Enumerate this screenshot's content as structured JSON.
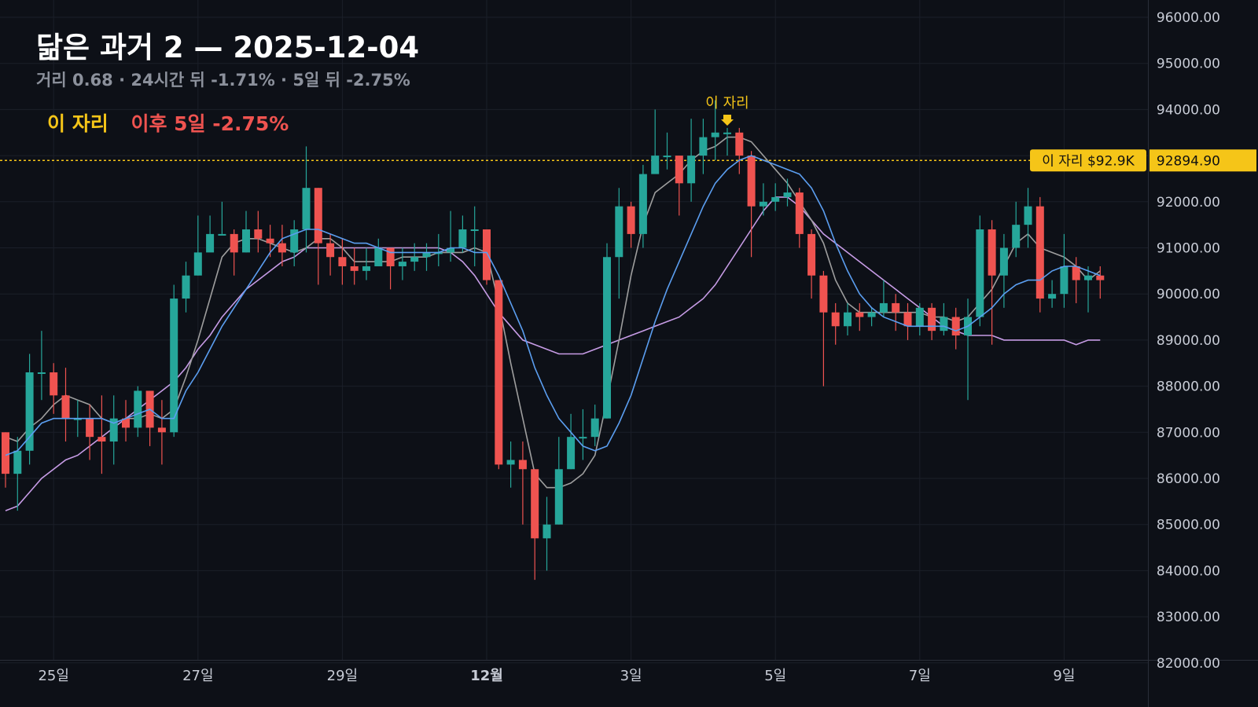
{
  "header": {
    "title": "닮은 과거 2 — 2025-12-04",
    "subtitle": "거리 0.68 · 24시간 뒤 -1.71% · 5일 뒤 -2.75%",
    "marker_label": "이 자리",
    "outcome_label": "이후 5일 -2.75%"
  },
  "colors": {
    "background": "#0d1017",
    "up": "#26a69a",
    "down": "#ef5350",
    "marker": "#f5c518",
    "ma_gray": "#9e9e9e",
    "ma_blue": "#5b9ef0",
    "ma_purple": "#c79ce6",
    "outcome": "#ef5350"
  },
  "chart_data": {
    "type": "candlestick",
    "ylim": [
      82000,
      96000
    ],
    "y_ticks": [
      "82000.00",
      "83000.00",
      "84000.00",
      "85000.00",
      "86000.00",
      "87000.00",
      "88000.00",
      "89000.00",
      "90000.00",
      "91000.00",
      "92000.00",
      "93000.00",
      "94000.00",
      "95000.00",
      "96000.00"
    ],
    "x_ticks": [
      {
        "label": "25일",
        "index": 4
      },
      {
        "label": "27일",
        "index": 16
      },
      {
        "label": "29일",
        "index": 28
      },
      {
        "label": "12월",
        "index": 40,
        "bold": true
      },
      {
        "label": "3일",
        "index": 52
      },
      {
        "label": "5일",
        "index": 64
      },
      {
        "label": "7일",
        "index": 76
      },
      {
        "label": "9일",
        "index": 88
      }
    ],
    "candles": [
      [
        87000,
        86100,
        87000,
        85800
      ],
      [
        86100,
        86600,
        86900,
        85300
      ],
      [
        86600,
        88300,
        88700,
        86300
      ],
      [
        88300,
        88300,
        89200,
        87700
      ],
      [
        88300,
        87800,
        88500,
        87400
      ],
      [
        87800,
        87300,
        88400,
        86800
      ],
      [
        87300,
        87300,
        87700,
        86900
      ],
      [
        87300,
        86900,
        87600,
        86400
      ],
      [
        86900,
        86800,
        87800,
        86100
      ],
      [
        86800,
        87300,
        87800,
        86300
      ],
      [
        87300,
        87100,
        87700,
        86800
      ],
      [
        87100,
        87900,
        88000,
        86900
      ],
      [
        87900,
        87100,
        87900,
        86700
      ],
      [
        87100,
        87000,
        87700,
        86300
      ],
      [
        87000,
        89900,
        90200,
        86900
      ],
      [
        89900,
        90400,
        90700,
        89600
      ],
      [
        90400,
        90900,
        91700,
        90400
      ],
      [
        90900,
        91300,
        91700,
        91000
      ],
      [
        91300,
        91300,
        92000,
        91300
      ],
      [
        91300,
        90900,
        91400,
        90400
      ],
      [
        90900,
        91400,
        91800,
        90900
      ],
      [
        91400,
        91200,
        91800,
        90900
      ],
      [
        91200,
        91100,
        91500,
        90800
      ],
      [
        91100,
        90900,
        91500,
        90600
      ],
      [
        90900,
        91400,
        91600,
        90600
      ],
      [
        91400,
        92300,
        93200,
        90900
      ],
      [
        92300,
        91100,
        92300,
        90200
      ],
      [
        91100,
        90800,
        91300,
        90400
      ],
      [
        90800,
        90600,
        91200,
        90200
      ],
      [
        90600,
        90500,
        91000,
        90200
      ],
      [
        90500,
        90600,
        91000,
        90300
      ],
      [
        90600,
        91000,
        91200,
        90600
      ],
      [
        91000,
        90600,
        91000,
        90100
      ],
      [
        90600,
        90700,
        91000,
        90300
      ],
      [
        90700,
        90800,
        91100,
        90500
      ],
      [
        90800,
        90900,
        91100,
        90500
      ],
      [
        90900,
        90900,
        91300,
        90600
      ],
      [
        90900,
        91000,
        91800,
        90700
      ],
      [
        91000,
        91400,
        91700,
        90900
      ],
      [
        91400,
        91400,
        91900,
        90600
      ],
      [
        91400,
        90300,
        91400,
        90200
      ],
      [
        90300,
        86300,
        90300,
        86200
      ],
      [
        86300,
        86400,
        86800,
        85800
      ],
      [
        86400,
        86200,
        86800,
        85000
      ],
      [
        86200,
        84700,
        86200,
        83800
      ],
      [
        84700,
        85000,
        85600,
        84000
      ],
      [
        85000,
        86200,
        86900,
        85000
      ],
      [
        86200,
        86900,
        87400,
        86200
      ],
      [
        86900,
        86900,
        87500,
        86400
      ],
      [
        86900,
        87300,
        87600,
        86700
      ],
      [
        87300,
        90800,
        91100,
        87300
      ],
      [
        90800,
        91900,
        92300,
        89900
      ],
      [
        91900,
        91300,
        92000,
        91000
      ],
      [
        91300,
        92600,
        92800,
        91000
      ],
      [
        92600,
        93000,
        94000,
        92800
      ],
      [
        93000,
        93000,
        93500,
        92700
      ],
      [
        93000,
        92400,
        93000,
        91700
      ],
      [
        92400,
        93000,
        93800,
        92000
      ],
      [
        93000,
        93400,
        93800,
        92600
      ],
      [
        93400,
        93500,
        94200,
        92900
      ],
      [
        93500,
        93500,
        93600,
        93000
      ],
      [
        93500,
        93000,
        93600,
        92600
      ],
      [
        93000,
        91900,
        93100,
        90800
      ],
      [
        91900,
        92000,
        92400,
        91700
      ],
      [
        92000,
        92100,
        92400,
        91800
      ],
      [
        92100,
        92200,
        92500,
        91900
      ],
      [
        92200,
        91300,
        92300,
        91000
      ],
      [
        91300,
        90400,
        91400,
        89900
      ],
      [
        90400,
        89600,
        90500,
        88000
      ],
      [
        89600,
        89300,
        89800,
        88900
      ],
      [
        89300,
        89600,
        89800,
        89100
      ],
      [
        89600,
        89500,
        89800,
        89200
      ],
      [
        89500,
        89600,
        89700,
        89300
      ],
      [
        89600,
        89800,
        90300,
        89500
      ],
      [
        89800,
        89600,
        90000,
        89200
      ],
      [
        89600,
        89300,
        89800,
        89000
      ],
      [
        89300,
        89700,
        89800,
        89100
      ],
      [
        89700,
        89200,
        89800,
        89000
      ],
      [
        89200,
        89500,
        89800,
        89100
      ],
      [
        89500,
        89100,
        89700,
        88800
      ],
      [
        89100,
        89500,
        89900,
        87700
      ],
      [
        89500,
        91400,
        91700,
        89300
      ],
      [
        91400,
        90400,
        91600,
        88900
      ],
      [
        90400,
        91000,
        91300,
        89700
      ],
      [
        91000,
        91500,
        92000,
        90800
      ],
      [
        91500,
        91900,
        92300,
        91000
      ],
      [
        91900,
        89900,
        92100,
        89600
      ],
      [
        89900,
        90000,
        90300,
        89700
      ],
      [
        90000,
        90600,
        91300,
        89700
      ],
      [
        90600,
        90300,
        90800,
        89800
      ],
      [
        90300,
        90400,
        90600,
        89600
      ],
      [
        90400,
        90300,
        90600,
        89900
      ]
    ],
    "ma_gray": [
      86900,
      86800,
      87100,
      87300,
      87600,
      87800,
      87700,
      87600,
      87300,
      87200,
      87300,
      87300,
      87400,
      87300,
      87500,
      88200,
      89000,
      89900,
      90800,
      91100,
      91200,
      91200,
      91100,
      91000,
      90900,
      91000,
      91200,
      91200,
      91000,
      90700,
      90700,
      90700,
      90700,
      90800,
      90800,
      90800,
      90900,
      90900,
      90900,
      91000,
      90900,
      89800,
      88500,
      87300,
      86100,
      85800,
      85800,
      85900,
      86100,
      86500,
      87700,
      89000,
      90400,
      91500,
      92200,
      92400,
      92600,
      92900,
      93100,
      93200,
      93400,
      93400,
      93300,
      93000,
      92700,
      92400,
      92000,
      91600,
      91100,
      90300,
      89800,
      89600,
      89600,
      89600,
      89600,
      89600,
      89600,
      89500,
      89500,
      89400,
      89500,
      89800,
      90100,
      90600,
      91100,
      91300,
      91000,
      90900,
      90800,
      90600,
      90300,
      90500
    ],
    "ma_blue": [
      86500,
      86600,
      86900,
      87200,
      87300,
      87300,
      87300,
      87300,
      87300,
      87200,
      87300,
      87400,
      87500,
      87300,
      87300,
      87900,
      88300,
      88800,
      89300,
      89700,
      90100,
      90500,
      90900,
      91200,
      91300,
      91400,
      91400,
      91300,
      91200,
      91100,
      91100,
      91000,
      90900,
      90900,
      90900,
      90900,
      90900,
      91000,
      91000,
      90900,
      90900,
      90400,
      89800,
      89200,
      88400,
      87800,
      87300,
      87000,
      86700,
      86600,
      86700,
      87200,
      87800,
      88600,
      89400,
      90100,
      90700,
      91300,
      91900,
      92400,
      92700,
      92900,
      93000,
      92900,
      92800,
      92700,
      92600,
      92300,
      91800,
      91100,
      90500,
      90000,
      89700,
      89500,
      89400,
      89300,
      89300,
      89300,
      89300,
      89200,
      89300,
      89500,
      89700,
      90000,
      90200,
      90300,
      90300,
      90500,
      90600,
      90600,
      90500,
      90400
    ],
    "ma_purple": [
      85300,
      85400,
      85700,
      86000,
      86200,
      86400,
      86500,
      86700,
      86900,
      87100,
      87300,
      87500,
      87700,
      87900,
      88100,
      88400,
      88800,
      89100,
      89500,
      89800,
      90100,
      90300,
      90500,
      90700,
      90800,
      91000,
      91000,
      91000,
      91000,
      91000,
      91000,
      91000,
      91000,
      91000,
      91000,
      91000,
      91000,
      90900,
      90700,
      90400,
      90000,
      89600,
      89300,
      89000,
      88900,
      88800,
      88700,
      88700,
      88700,
      88800,
      88900,
      89000,
      89100,
      89200,
      89300,
      89400,
      89500,
      89700,
      89900,
      90200,
      90600,
      91000,
      91400,
      91800,
      92100,
      92100,
      91900,
      91600,
      91300,
      91100,
      90900,
      90700,
      90500,
      90300,
      90100,
      89900,
      89700,
      89500,
      89300,
      89200,
      89100,
      89100,
      89100,
      89000,
      89000,
      89000,
      89000,
      89000,
      89000,
      88900,
      89000,
      89000
    ],
    "marker": {
      "index": 60,
      "label": "이 자리",
      "price": 92894.9,
      "price_label": "92894.90",
      "tag_label": "이 자리 $92.9K"
    }
  }
}
